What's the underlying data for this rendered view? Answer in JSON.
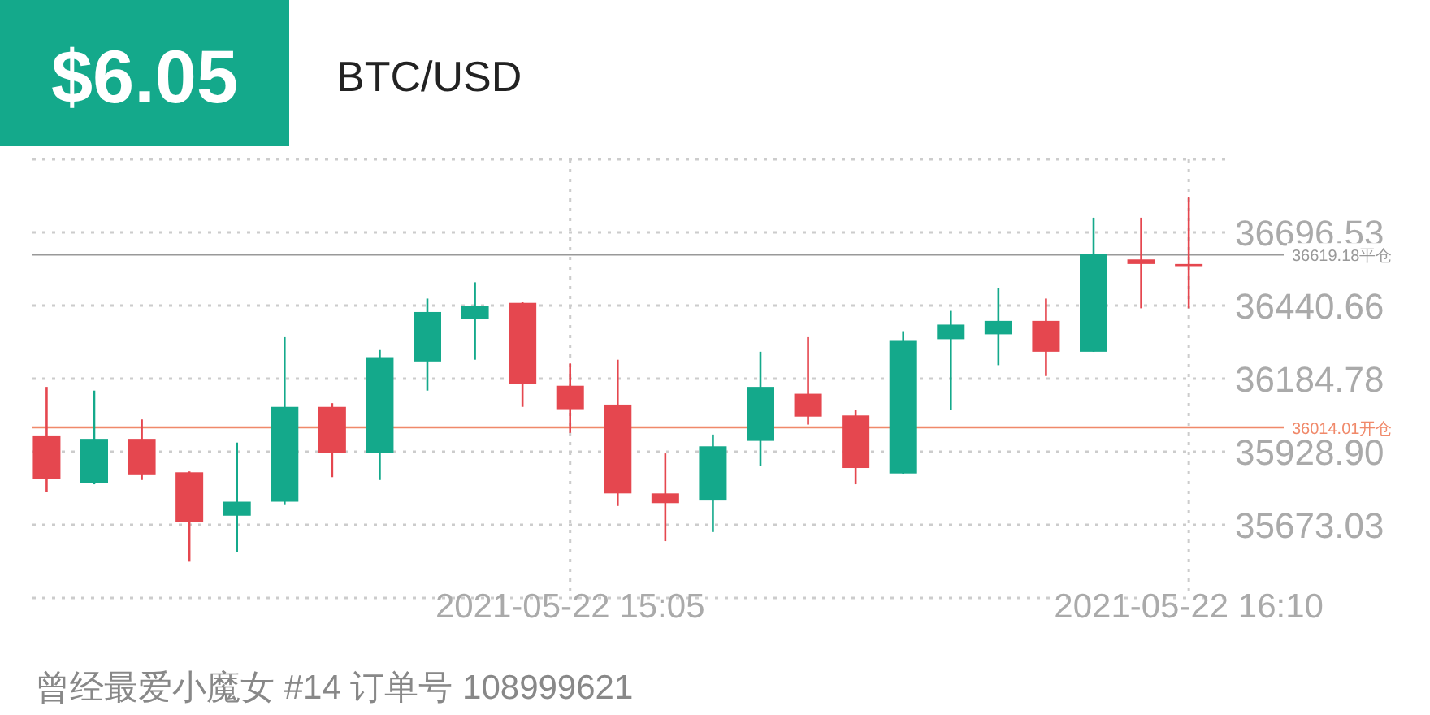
{
  "chart_data": {
    "type": "candlestick",
    "title": "BTC/USD",
    "annotations": [
      "$6.05",
      "曾经最爱小魔女 #14   订单号 108999621"
    ],
    "x": [
      "2021-05-22T14:10",
      "2021-05-22T14:15",
      "2021-05-22T14:20",
      "2021-05-22T14:25",
      "2021-05-22T14:30",
      "2021-05-22T14:35",
      "2021-05-22T14:40",
      "2021-05-22T14:45",
      "2021-05-22T14:50",
      "2021-05-22T14:55",
      "2021-05-22T15:00",
      "2021-05-22T15:05",
      "2021-05-22T15:10",
      "2021-05-22T15:15",
      "2021-05-22T15:20",
      "2021-05-22T15:25",
      "2021-05-22T15:30",
      "2021-05-22T15:35",
      "2021-05-22T15:40",
      "2021-05-22T15:45",
      "2021-05-22T15:50",
      "2021-05-22T15:55",
      "2021-05-22T16:00",
      "2021-05-22T16:05",
      "2021-05-22T16:10"
    ],
    "ohlc": [
      [
        35986,
        36156,
        35787,
        35834
      ],
      [
        35819,
        36143,
        35815,
        35974
      ],
      [
        35974,
        36042,
        35830,
        35847
      ],
      [
        35857,
        35860,
        35544,
        35682
      ],
      [
        35705,
        35961,
        35578,
        35754
      ],
      [
        35754,
        36330,
        35745,
        36086
      ],
      [
        36086,
        36099,
        35840,
        35925
      ],
      [
        35925,
        36285,
        35830,
        36260
      ],
      [
        36245,
        36465,
        36143,
        36418
      ],
      [
        36393,
        36522,
        36251,
        36440
      ],
      [
        36450,
        36452,
        36086,
        36166
      ],
      [
        36160,
        36238,
        35995,
        36078
      ],
      [
        36094,
        36251,
        35739,
        35783
      ],
      [
        35783,
        35923,
        35616,
        35749
      ],
      [
        35758,
        35989,
        35648,
        35948
      ],
      [
        35967,
        36279,
        35878,
        36156
      ],
      [
        36132,
        36330,
        36024,
        36052
      ],
      [
        36056,
        36075,
        35815,
        35872
      ],
      [
        35853,
        36351,
        35850,
        36317
      ],
      [
        36323,
        36422,
        36075,
        36374
      ],
      [
        36340,
        36503,
        36232,
        36387
      ],
      [
        36387,
        36465,
        36194,
        36279
      ],
      [
        36279,
        36748,
        36279,
        36621
      ],
      [
        36602,
        36748,
        36431,
        36586
      ],
      [
        36586,
        36819,
        36431,
        36586
      ]
    ],
    "colors": [
      "#e5474f",
      "#14a98b",
      "#e5474f",
      "#e5474f",
      "#14a98b",
      "#14a98b",
      "#e5474f",
      "#14a98b",
      "#14a98b",
      "#14a98b",
      "#e5474f",
      "#e5474f",
      "#e5474f",
      "#e5474f",
      "#14a98b",
      "#14a98b",
      "#e5474f",
      "#e5474f",
      "#14a98b",
      "#14a98b",
      "#14a98b",
      "#e5474f",
      "#14a98b",
      "#e5474f",
      "#e5474f"
    ],
    "xlim": [
      "2021-05-22T14:08",
      "2021-05-22T16:14"
    ],
    "xticks": [
      {
        "value": "2021-05-22T15:05",
        "label": "2021-05-22 15:05"
      },
      {
        "value": "2021-05-22T16:10",
        "label": "2021-05-22 16:10"
      }
    ],
    "ylim": [
      35417.16,
      36952.41
    ],
    "yticks": [
      {
        "value": 35417.16,
        "label": null
      },
      35673.03,
      {
        "value": 35928.9,
        "label": "35928.90"
      },
      36184.78,
      36440.66,
      36696.53,
      {
        "value": 36952.41,
        "label": null
      }
    ],
    "grid": true,
    "ref_lines": [
      {
        "axis": "y",
        "value": 36619.18,
        "label": "36619.18平仓",
        "color": "#999999"
      },
      {
        "axis": "y",
        "value": 36014.01,
        "label": "36014.01开仓",
        "color": "#f0896a"
      }
    ]
  }
}
